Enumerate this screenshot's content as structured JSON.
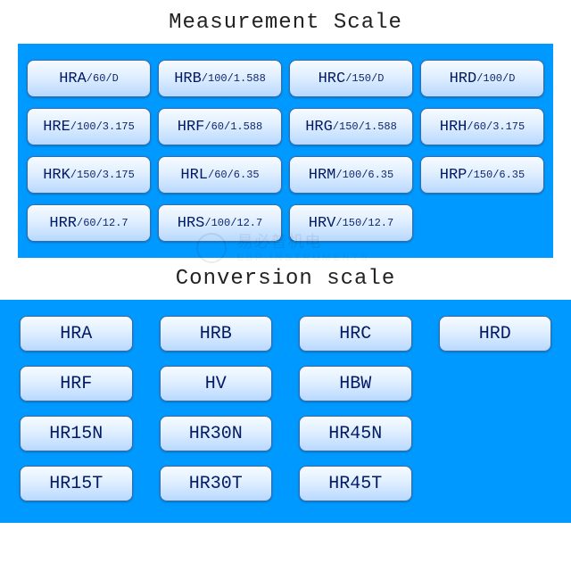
{
  "titles": {
    "measurement": "Measurement Scale",
    "conversion": "Conversion scale"
  },
  "colors": {
    "panel_bg": "#0099ff",
    "button_text": "#031a66",
    "button_border": "#3a6aa8",
    "button_grad_top": "#f6fbff",
    "button_grad_mid": "#e0efff",
    "button_grad_bot": "#b8d8ff",
    "page_bg": "#ffffff"
  },
  "watermark": {
    "line1": "易必普机电",
    "line2": "EBP INSTRUMENTS"
  },
  "measurement_grid": {
    "columns": 4,
    "buttons": [
      {
        "main": "HRA",
        "sub": "/60/D"
      },
      {
        "main": "HRB",
        "sub": "/100/1.588"
      },
      {
        "main": "HRC",
        "sub": "/150/D"
      },
      {
        "main": "HRD",
        "sub": "/100/D"
      },
      {
        "main": "HRE",
        "sub": "/100/3.175"
      },
      {
        "main": "HRF",
        "sub": "/60/1.588"
      },
      {
        "main": "HRG",
        "sub": "/150/1.588"
      },
      {
        "main": "HRH",
        "sub": "/60/3.175"
      },
      {
        "main": "HRK",
        "sub": "/150/3.175"
      },
      {
        "main": "HRL",
        "sub": "/60/6.35"
      },
      {
        "main": "HRM",
        "sub": "/100/6.35"
      },
      {
        "main": "HRP",
        "sub": "/150/6.35"
      },
      {
        "main": "HRR",
        "sub": "/60/12.7"
      },
      {
        "main": "HRS",
        "sub": "/100/12.7"
      },
      {
        "main": "HRV",
        "sub": "/150/12.7"
      }
    ]
  },
  "conversion_grid": {
    "columns": 4,
    "buttons": [
      "HRA",
      "HRB",
      "HRC",
      "HRD",
      "HRF",
      "HV",
      "HBW",
      "",
      "HR15N",
      "HR30N",
      "HR45N",
      "",
      "HR15T",
      "HR30T",
      "HR45T",
      ""
    ]
  }
}
